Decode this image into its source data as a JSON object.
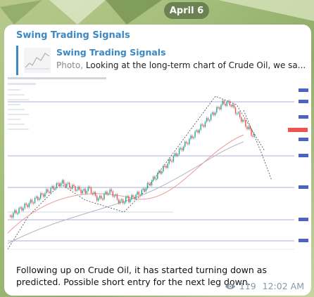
{
  "date_label": "April 6",
  "message": {
    "sender": "Swing Trading Signals",
    "reply": {
      "name": "Swing Trading Signals",
      "media_type": "Photo,",
      "preview": "Looking at the long-term chart of Crude Oil, we sa..."
    },
    "caption": "Following up on Crude Oil, it has started turning down as predicted. Possible short entry for the next leg down.",
    "views": "119",
    "time": "12:02 AM"
  },
  "icons": {
    "views": "eye-icon"
  },
  "colors": {
    "accent": "#3b88c3",
    "candle_up": "#26a69a",
    "candle_down": "#ef5350"
  }
}
